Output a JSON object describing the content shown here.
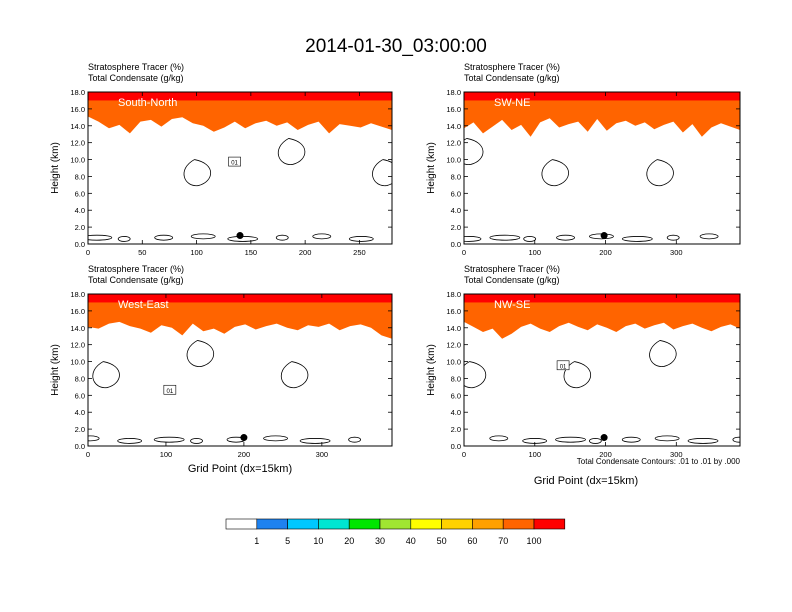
{
  "title": "2014-01-30_03:00:00",
  "common": {
    "left_title_line1": "Stratosphere Tracer   (%)",
    "left_title_line2": "Total Condensate   (g/kg)",
    "ylabel": "Height (km)",
    "xlabel": "Grid Point (dx=15km)",
    "contour_note": "Total Condensate Contours: .01 to .01 by .000",
    "contour_label": "01"
  },
  "colorbar": {
    "levels": [
      "1",
      "5",
      "10",
      "20",
      "30",
      "40",
      "50",
      "60",
      "70",
      "100"
    ],
    "colors": [
      "#ffffff",
      "#1e82f0",
      "#00c8ff",
      "#00e6d2",
      "#00e600",
      "#a0e632",
      "#ffff00",
      "#ffd200",
      "#ffa000",
      "#ff6400",
      "#ff0000"
    ]
  },
  "chart_data": [
    {
      "type": "heatmap",
      "panel": "South-North",
      "series_label": "South-North",
      "xlabel": "",
      "ylabel": "Height (km)",
      "xlim": [
        0,
        280
      ],
      "ylim": [
        0,
        18
      ],
      "xticks": [
        0,
        50,
        100,
        150,
        200,
        250
      ],
      "yticks": [
        "0.0",
        "2.0",
        "4.0",
        "6.0",
        "8.0",
        "10.0",
        "12.0",
        "14.0",
        "16.0",
        "18.0"
      ],
      "tracer_base_km": [
        15.2,
        14.6,
        13.8,
        14.2,
        13.2,
        14.6,
        14.8,
        14.0,
        14.9,
        15.1,
        14.4,
        14.1,
        13.4,
        13.9,
        14.6,
        13.8,
        14.4,
        14.7,
        14.1,
        14.5,
        13.6,
        14.2,
        14.6,
        13.2,
        14.3,
        14.1,
        13.9,
        14.4,
        14.0,
        13.6
      ],
      "marker": {
        "x": 140,
        "y": 1.0
      },
      "contour_label_at": {
        "x": 135,
        "y": 9.7
      }
    },
    {
      "type": "heatmap",
      "panel": "SW-NE",
      "series_label": "SW-NE",
      "xlabel": "",
      "ylabel": "Height (km)",
      "xlim": [
        0,
        390
      ],
      "ylim": [
        0,
        18
      ],
      "xticks": [
        0,
        100,
        200,
        300
      ],
      "yticks": [
        "0.0",
        "2.0",
        "4.0",
        "6.0",
        "8.0",
        "10.0",
        "12.0",
        "14.0",
        "16.0",
        "18.0"
      ],
      "tracer_base_km": [
        13.8,
        14.5,
        13.2,
        14.0,
        14.8,
        13.6,
        14.2,
        12.8,
        14.5,
        15.0,
        13.9,
        14.3,
        14.6,
        13.4,
        14.9,
        13.5,
        14.4,
        14.7,
        14.1,
        14.5,
        13.7,
        14.2,
        14.6,
        13.3,
        14.3,
        12.8,
        13.9,
        14.4,
        14.0,
        13.6
      ],
      "marker": {
        "x": 198,
        "y": 1.0
      }
    },
    {
      "type": "heatmap",
      "panel": "West-East",
      "series_label": "West-East",
      "xlabel": "Grid Point (dx=15km)",
      "ylabel": "Height (km)",
      "xlim": [
        0,
        390
      ],
      "ylim": [
        0,
        18
      ],
      "xticks": [
        0,
        100,
        200,
        300
      ],
      "yticks": [
        "0.0",
        "2.0",
        "4.0",
        "6.0",
        "8.0",
        "10.0",
        "12.0",
        "14.0",
        "16.0",
        "18.0"
      ],
      "tracer_base_km": [
        14.2,
        14.0,
        14.6,
        14.8,
        14.3,
        14.0,
        13.5,
        14.4,
        14.1,
        13.2,
        14.6,
        13.7,
        14.0,
        13.4,
        14.2,
        14.5,
        13.9,
        14.3,
        14.6,
        14.1,
        13.8,
        14.4,
        14.2,
        14.6,
        13.8,
        14.3,
        14.5,
        14.1,
        13.2,
        12.8
      ],
      "marker": {
        "x": 200,
        "y": 1.0
      },
      "contour_label_at": {
        "x": 105,
        "y": 6.6
      }
    },
    {
      "type": "heatmap",
      "panel": "NW-SE",
      "series_label": "NW-SE",
      "xlabel": "Grid Point (dx=15km)",
      "ylabel": "Height (km)",
      "xlim": [
        0,
        390
      ],
      "ylim": [
        0,
        18
      ],
      "xticks": [
        0,
        100,
        200,
        300
      ],
      "yticks": [
        "0.0",
        "2.0",
        "4.0",
        "6.0",
        "8.0",
        "10.0",
        "12.0",
        "14.0",
        "16.0",
        "18.0"
      ],
      "tracer_base_km": [
        14.8,
        14.2,
        13.6,
        14.0,
        12.8,
        13.4,
        14.2,
        14.6,
        14.0,
        13.6,
        14.3,
        14.7,
        14.2,
        13.8,
        14.5,
        14.1,
        13.6,
        14.3,
        14.6,
        14.0,
        14.4,
        14.7,
        13.9,
        14.3,
        14.6,
        14.1,
        13.7,
        14.2,
        14.5,
        14.0
      ],
      "marker": {
        "x": 198,
        "y": 1.0
      },
      "contour_label_at": {
        "x": 140,
        "y": 9.5
      }
    }
  ]
}
